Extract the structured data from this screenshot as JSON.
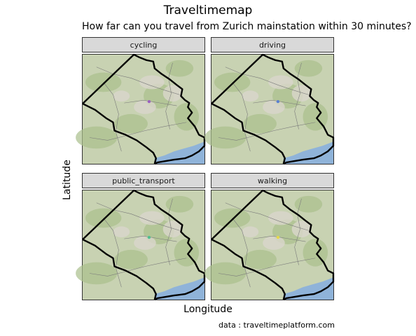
{
  "chart_data": {
    "type": "map",
    "title": "Traveltimemap",
    "subtitle": "How far can you travel from Zurich mainstation within 30 minutes?",
    "xlabel": "Longitude",
    "ylabel": "Latitude",
    "caption": "data : traveltimeplatform.com",
    "facets": [
      {
        "label": "cycling",
        "marker_color": "#9b5fc0"
      },
      {
        "label": "driving",
        "marker_color": "#5a7fd1"
      },
      {
        "label": "public_transport",
        "marker_color": "#4fbf8f"
      },
      {
        "label": "walking",
        "marker_color": "#e6d84a"
      }
    ],
    "basemap": "terrain",
    "isochrone_color": "#000000",
    "lake_color": "#8fb3d9"
  }
}
